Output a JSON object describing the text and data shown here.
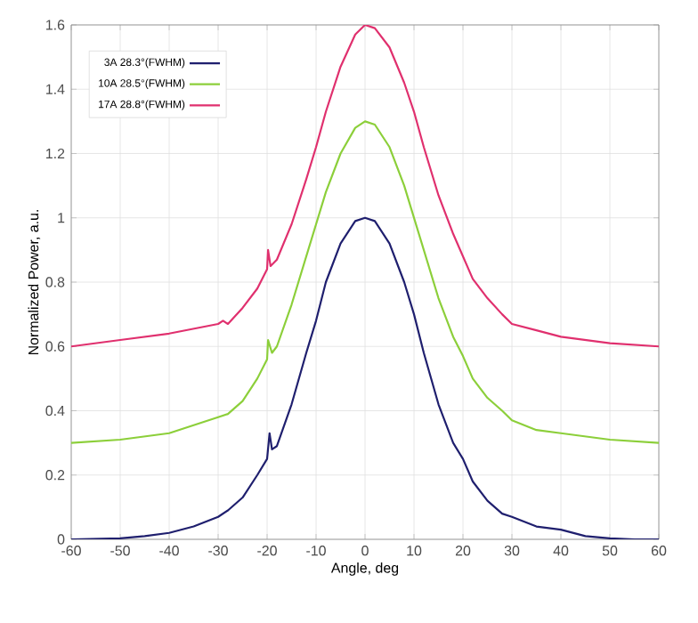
{
  "chart_data": {
    "type": "line",
    "xlabel": "Angle, deg",
    "ylabel": "Normalized Power, a.u.",
    "xlim": [
      -60,
      60
    ],
    "ylim": [
      0,
      1.6
    ],
    "xticks": [
      -60,
      -50,
      -40,
      -30,
      -20,
      -10,
      0,
      10,
      20,
      30,
      40,
      50,
      60
    ],
    "yticks": [
      0,
      0.2,
      0.4,
      0.6,
      0.8,
      1,
      1.2,
      1.4,
      1.6
    ],
    "grid": true,
    "legend": "top left",
    "marker": "none",
    "line_style": "solid",
    "series": [
      {
        "name": "3A 28.3°(FWHM)",
        "color": "#1f1f6e",
        "x": [
          -60,
          -50,
          -45,
          -40,
          -35,
          -30,
          -28,
          -25,
          -22,
          -20,
          -19.5,
          -19,
          -18,
          -15,
          -12,
          -10,
          -8,
          -5,
          -2,
          0,
          2,
          5,
          8,
          10,
          12,
          15,
          18,
          20,
          22,
          25,
          28,
          30,
          35,
          40,
          45,
          50,
          55,
          60
        ],
        "values": [
          0,
          0.003,
          0.01,
          0.02,
          0.04,
          0.07,
          0.09,
          0.13,
          0.2,
          0.25,
          0.33,
          0.28,
          0.29,
          0.42,
          0.58,
          0.68,
          0.8,
          0.92,
          0.99,
          1.0,
          0.99,
          0.92,
          0.8,
          0.7,
          0.58,
          0.42,
          0.3,
          0.25,
          0.18,
          0.12,
          0.08,
          0.07,
          0.04,
          0.03,
          0.01,
          0.003,
          0,
          0
        ]
      },
      {
        "name": "10A 28.5°(FWHM)",
        "color": "#8ccf3a",
        "x": [
          -60,
          -50,
          -40,
          -30,
          -28,
          -25,
          -22,
          -20,
          -19.8,
          -19,
          -18,
          -15,
          -12,
          -10,
          -8,
          -5,
          -2,
          0,
          2,
          5,
          8,
          10,
          12,
          15,
          18,
          20,
          22,
          25,
          28,
          30,
          35,
          40,
          50,
          60
        ],
        "values": [
          0.3,
          0.31,
          0.33,
          0.38,
          0.39,
          0.43,
          0.5,
          0.56,
          0.62,
          0.58,
          0.6,
          0.73,
          0.88,
          0.98,
          1.08,
          1.2,
          1.28,
          1.3,
          1.29,
          1.22,
          1.1,
          1.0,
          0.9,
          0.75,
          0.63,
          0.57,
          0.5,
          0.44,
          0.4,
          0.37,
          0.34,
          0.33,
          0.31,
          0.3
        ]
      },
      {
        "name": "17A 28.8°(FWHM)",
        "color": "#e0306e",
        "x": [
          -60,
          -50,
          -40,
          -30,
          -29,
          -28,
          -25,
          -22,
          -20,
          -19.8,
          -19.3,
          -18,
          -15,
          -12,
          -10,
          -8,
          -5,
          -2,
          0,
          2,
          5,
          8,
          10,
          12,
          15,
          18,
          20,
          22,
          25,
          28,
          30,
          35,
          40,
          50,
          60
        ],
        "values": [
          0.6,
          0.62,
          0.64,
          0.67,
          0.68,
          0.67,
          0.72,
          0.78,
          0.84,
          0.9,
          0.85,
          0.87,
          0.98,
          1.12,
          1.22,
          1.33,
          1.47,
          1.57,
          1.6,
          1.59,
          1.53,
          1.42,
          1.33,
          1.22,
          1.07,
          0.95,
          0.88,
          0.81,
          0.75,
          0.7,
          0.67,
          0.65,
          0.63,
          0.61,
          0.6
        ]
      }
    ]
  }
}
